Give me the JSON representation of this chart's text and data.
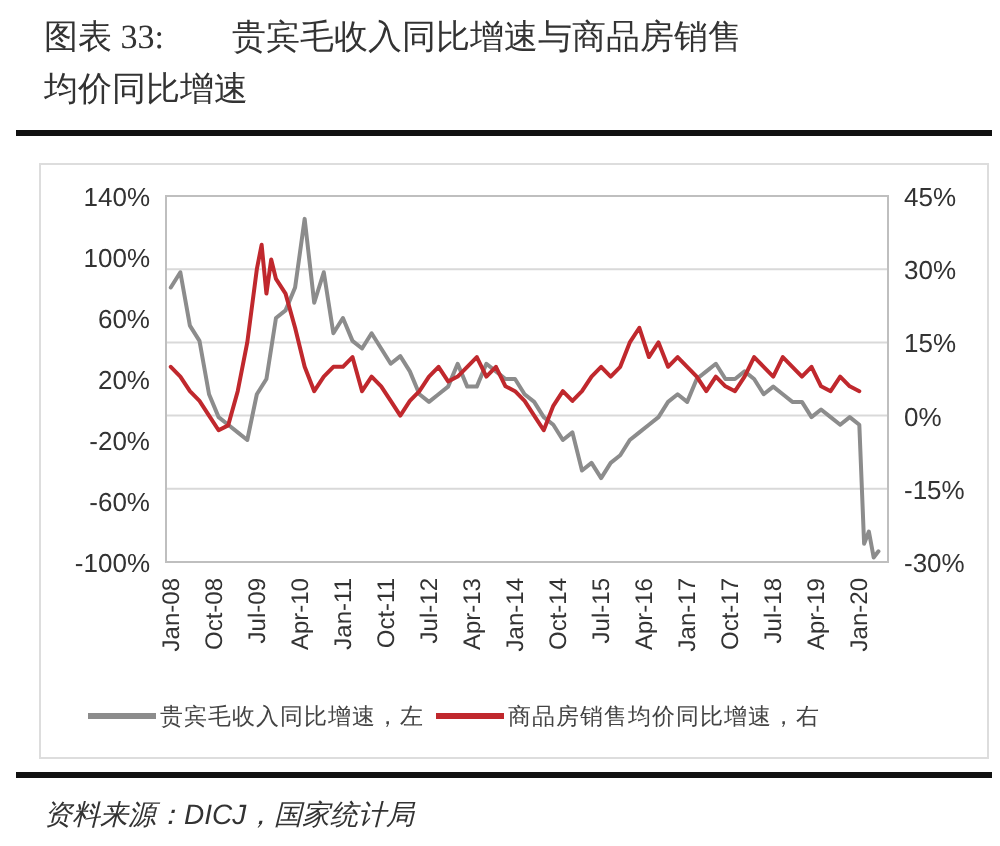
{
  "chart_data": {
    "type": "line",
    "title": "图表 33:　　贵宾毛收入同比增速与商品房销售均价同比增速",
    "annotations": [
      "资料来源：DICJ，国家统计局"
    ],
    "xlim": [
      "2007-12",
      "2020-07"
    ],
    "xticks": [
      {
        "value": "2008-01",
        "label": "Jan-08"
      },
      {
        "value": "2008-10",
        "label": "Oct-08"
      },
      {
        "value": "2009-07",
        "label": "Jul-09"
      },
      {
        "value": "2010-04",
        "label": "Apr-10"
      },
      {
        "value": "2011-01",
        "label": "Jan-11"
      },
      {
        "value": "2011-10",
        "label": "Oct-11"
      },
      {
        "value": "2012-07",
        "label": "Jul-12"
      },
      {
        "value": "2013-04",
        "label": "Apr-13"
      },
      {
        "value": "2014-01",
        "label": "Jan-14"
      },
      {
        "value": "2014-10",
        "label": "Oct-14"
      },
      {
        "value": "2015-07",
        "label": "Jul-15"
      },
      {
        "value": "2016-04",
        "label": "Apr-16"
      },
      {
        "value": "2017-01",
        "label": "Jan-17"
      },
      {
        "value": "2017-10",
        "label": "Oct-17"
      },
      {
        "value": "2018-07",
        "label": "Jul-18"
      },
      {
        "value": "2019-04",
        "label": "Apr-19"
      },
      {
        "value": "2020-01",
        "label": "Jan-20"
      }
    ],
    "ylim": [
      -100,
      140
    ],
    "yticks": [
      {
        "value": -100,
        "label": "-100%"
      },
      {
        "value": -60,
        "label": "-60%"
      },
      {
        "value": -20,
        "label": "-20%"
      },
      {
        "value": 20,
        "label": "20%"
      },
      {
        "value": 60,
        "label": "60%"
      },
      {
        "value": 100,
        "label": "100%"
      },
      {
        "value": 140,
        "label": "140%"
      }
    ],
    "y2lim": [
      -30,
      45
    ],
    "y2ticks": [
      {
        "value": -30,
        "label": "-30%"
      },
      {
        "value": -15,
        "label": "-15%"
      },
      {
        "value": 0,
        "label": "0%"
      },
      {
        "value": 15,
        "label": "15%"
      },
      {
        "value": 30,
        "label": "30%"
      },
      {
        "value": 45,
        "label": "45%"
      }
    ],
    "grid": "y",
    "legend": "bottom",
    "series": [
      {
        "name": "贵宾毛收入同比增速，左",
        "color": "#8c8c8c",
        "x": [
          "2008-01",
          "2008-03",
          "2008-05",
          "2008-07",
          "2008-09",
          "2008-11",
          "2009-01",
          "2009-03",
          "2009-05",
          "2009-07",
          "2009-09",
          "2009-11",
          "2010-01",
          "2010-03",
          "2010-05",
          "2010-07",
          "2010-09",
          "2010-11",
          "2011-01",
          "2011-03",
          "2011-05",
          "2011-07",
          "2011-09",
          "2011-11",
          "2012-01",
          "2012-03",
          "2012-05",
          "2012-07",
          "2012-09",
          "2012-11",
          "2013-01",
          "2013-03",
          "2013-05",
          "2013-07",
          "2013-09",
          "2013-11",
          "2014-01",
          "2014-03",
          "2014-05",
          "2014-07",
          "2014-09",
          "2014-11",
          "2015-01",
          "2015-03",
          "2015-05",
          "2015-07",
          "2015-09",
          "2015-11",
          "2016-01",
          "2016-03",
          "2016-05",
          "2016-07",
          "2016-09",
          "2016-11",
          "2017-01",
          "2017-03",
          "2017-05",
          "2017-07",
          "2017-09",
          "2017-11",
          "2018-01",
          "2018-03",
          "2018-05",
          "2018-07",
          "2018-09",
          "2018-11",
          "2019-01",
          "2019-03",
          "2019-05",
          "2019-07",
          "2019-09",
          "2019-11",
          "2020-01",
          "2020-02",
          "2020-03",
          "2020-04",
          "2020-05"
        ],
        "values": [
          80,
          90,
          55,
          45,
          10,
          -5,
          -10,
          -15,
          -20,
          10,
          20,
          60,
          65,
          80,
          125,
          70,
          90,
          50,
          60,
          45,
          40,
          50,
          40,
          30,
          35,
          25,
          10,
          5,
          10,
          15,
          30,
          15,
          15,
          30,
          25,
          20,
          20,
          10,
          5,
          -5,
          -10,
          -20,
          -15,
          -40,
          -35,
          -45,
          -35,
          -30,
          -20,
          -15,
          -10,
          -5,
          5,
          10,
          5,
          20,
          25,
          30,
          20,
          20,
          25,
          20,
          10,
          15,
          10,
          5,
          5,
          -5,
          0,
          -5,
          -10,
          -5,
          -10,
          -88,
          -80,
          -97,
          -93
        ]
      },
      {
        "name": "商品房销售均价同比增速，右",
        "color": "#c0282d",
        "axis": "y2",
        "x": [
          "2008-01",
          "2008-03",
          "2008-05",
          "2008-07",
          "2008-09",
          "2008-11",
          "2009-01",
          "2009-03",
          "2009-05",
          "2009-07",
          "2009-08",
          "2009-09",
          "2009-10",
          "2009-11",
          "2010-01",
          "2010-03",
          "2010-05",
          "2010-07",
          "2010-09",
          "2010-11",
          "2011-01",
          "2011-03",
          "2011-05",
          "2011-07",
          "2011-09",
          "2011-11",
          "2012-01",
          "2012-03",
          "2012-05",
          "2012-07",
          "2012-09",
          "2012-11",
          "2013-01",
          "2013-03",
          "2013-05",
          "2013-07",
          "2013-09",
          "2013-11",
          "2014-01",
          "2014-03",
          "2014-05",
          "2014-07",
          "2014-09",
          "2014-11",
          "2015-01",
          "2015-03",
          "2015-05",
          "2015-07",
          "2015-09",
          "2015-11",
          "2016-01",
          "2016-03",
          "2016-05",
          "2016-07",
          "2016-09",
          "2016-11",
          "2017-01",
          "2017-03",
          "2017-05",
          "2017-07",
          "2017-09",
          "2017-11",
          "2018-01",
          "2018-03",
          "2018-05",
          "2018-07",
          "2018-09",
          "2018-11",
          "2019-01",
          "2019-03",
          "2019-05",
          "2019-07",
          "2019-09",
          "2019-11",
          "2020-01"
        ],
        "values": [
          10,
          8,
          5,
          3,
          0,
          -3,
          -2,
          5,
          15,
          30,
          35,
          25,
          32,
          28,
          25,
          18,
          10,
          5,
          8,
          10,
          10,
          12,
          5,
          8,
          6,
          3,
          0,
          3,
          5,
          8,
          10,
          7,
          8,
          10,
          12,
          8,
          10,
          6,
          5,
          3,
          0,
          -3,
          2,
          5,
          3,
          5,
          8,
          10,
          8,
          10,
          15,
          18,
          12,
          15,
          10,
          12,
          10,
          8,
          5,
          8,
          6,
          5,
          8,
          12,
          10,
          8,
          12,
          10,
          8,
          10,
          6,
          5,
          8,
          6,
          5
        ]
      }
    ]
  }
}
